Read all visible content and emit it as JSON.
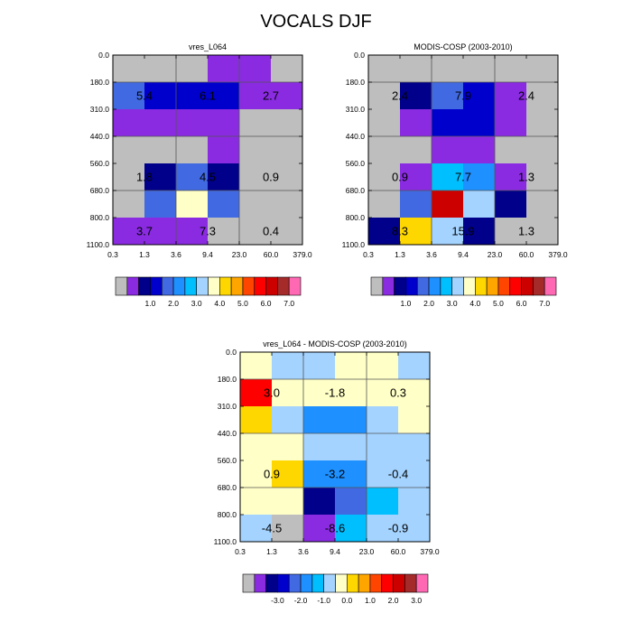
{
  "title": "VOCALS DJF",
  "colors": {
    "c0": "#bebebe",
    "c1": "#8a2be2",
    "c2": "#00008b",
    "c3": "#0000cd",
    "c4": "#4169e1",
    "c5": "#1e90ff",
    "c6": "#00bfff",
    "c7": "#a4d3ff",
    "c8": "#ffffc8",
    "c9": "#ffd700",
    "c10": "#ffa500",
    "c11": "#ff4500",
    "c12": "#ff0000",
    "c13": "#cd0000",
    "c14": "#a52a2a",
    "c15": "#ff69b4"
  },
  "chart_data": [
    {
      "type": "heatmap",
      "title": "vres_L064",
      "xticks": [
        "0.3",
        "1.3",
        "3.6",
        "9.4",
        "23.0",
        "60.0",
        "379.0"
      ],
      "yticks": [
        "0.0",
        "180.0",
        "310.0",
        "440.0",
        "560.0",
        "680.0",
        "800.0",
        "1100.0"
      ],
      "cells": [
        [
          "c0",
          "c0",
          "c0",
          "c1",
          "c1",
          "c0"
        ],
        [
          "c4",
          "c3",
          "c3",
          "c3",
          "c1",
          "c1"
        ],
        [
          "c1",
          "c1",
          "c1",
          "c1",
          "c0",
          "c0"
        ],
        [
          "c0",
          "c0",
          "c0",
          "c1",
          "c0",
          "c0"
        ],
        [
          "c0",
          "c2",
          "c4",
          "c2",
          "c0",
          "c0"
        ],
        [
          "c0",
          "c4",
          "c8",
          "c4",
          "c0",
          "c0"
        ],
        [
          "c1",
          "c1",
          "c1",
          "c0",
          "c0",
          "c0"
        ]
      ],
      "annotations": [
        [
          "5.4",
          "6.1",
          "2.7"
        ],
        [
          "1.8",
          "4.5",
          "0.9"
        ],
        [
          "3.7",
          "7.3",
          "0.4"
        ]
      ],
      "colorbar_labels": [
        "1.0",
        "2.0",
        "3.0",
        "4.0",
        "5.0",
        "6.0",
        "7.0"
      ]
    },
    {
      "type": "heatmap",
      "title": "MODIS-COSP (2003-2010)",
      "xticks": [
        "0.3",
        "1.3",
        "3.6",
        "9.4",
        "23.0",
        "60.0",
        "379.0"
      ],
      "yticks": [
        "0.0",
        "180.0",
        "310.0",
        "440.0",
        "560.0",
        "680.0",
        "800.0",
        "1100.0"
      ],
      "cells": [
        [
          "c0",
          "c0",
          "c0",
          "c0",
          "c0",
          "c0"
        ],
        [
          "c0",
          "c2",
          "c4",
          "c3",
          "c1",
          "c0"
        ],
        [
          "c0",
          "c1",
          "c3",
          "c3",
          "c1",
          "c0"
        ],
        [
          "c0",
          "c0",
          "c1",
          "c1",
          "c0",
          "c0"
        ],
        [
          "c0",
          "c1",
          "c6",
          "c5",
          "c1",
          "c0"
        ],
        [
          "c0",
          "c4",
          "c13",
          "c7",
          "c2",
          "c0"
        ],
        [
          "c2",
          "c9",
          "c7",
          "c2",
          "c0",
          "c0"
        ]
      ],
      "annotations": [
        [
          "2.4",
          "7.9",
          "2.4"
        ],
        [
          "0.9",
          "7.7",
          "1.3"
        ],
        [
          "8.3",
          "15.9",
          "1.3"
        ]
      ],
      "colorbar_labels": [
        "1.0",
        "2.0",
        "3.0",
        "4.0",
        "5.0",
        "6.0",
        "7.0"
      ]
    },
    {
      "type": "heatmap",
      "title": "vres_L064 - MODIS-COSP (2003-2010)",
      "xticks": [
        "0.3",
        "1.3",
        "3.6",
        "9.4",
        "23.0",
        "60.0",
        "379.0"
      ],
      "yticks": [
        "0.0",
        "180.0",
        "310.0",
        "440.0",
        "560.0",
        "680.0",
        "800.0",
        "1100.0"
      ],
      "cells": [
        [
          "c8",
          "c7",
          "c7",
          "c8",
          "c8",
          "c7"
        ],
        [
          "c12",
          "c8",
          "c8",
          "c8",
          "c8",
          "c8"
        ],
        [
          "c9",
          "c7",
          "c5",
          "c5",
          "c7",
          "c8"
        ],
        [
          "c8",
          "c8",
          "c7",
          "c7",
          "c7",
          "c7"
        ],
        [
          "c8",
          "c9",
          "c5",
          "c5",
          "c7",
          "c7"
        ],
        [
          "c8",
          "c8",
          "c2",
          "c4",
          "c6",
          "c7"
        ],
        [
          "c7",
          "c0",
          "c1",
          "c6",
          "c7",
          "c7"
        ]
      ],
      "annotations": [
        [
          "3.0",
          "-1.8",
          "0.3"
        ],
        [
          "0.9",
          "-3.2",
          "-0.4"
        ],
        [
          "-4.5",
          "-8.6",
          "-0.9"
        ]
      ],
      "colorbar_labels": [
        "-3.0",
        "-2.0",
        "-1.0",
        "0.0",
        "1.0",
        "2.0",
        "3.0"
      ]
    }
  ]
}
